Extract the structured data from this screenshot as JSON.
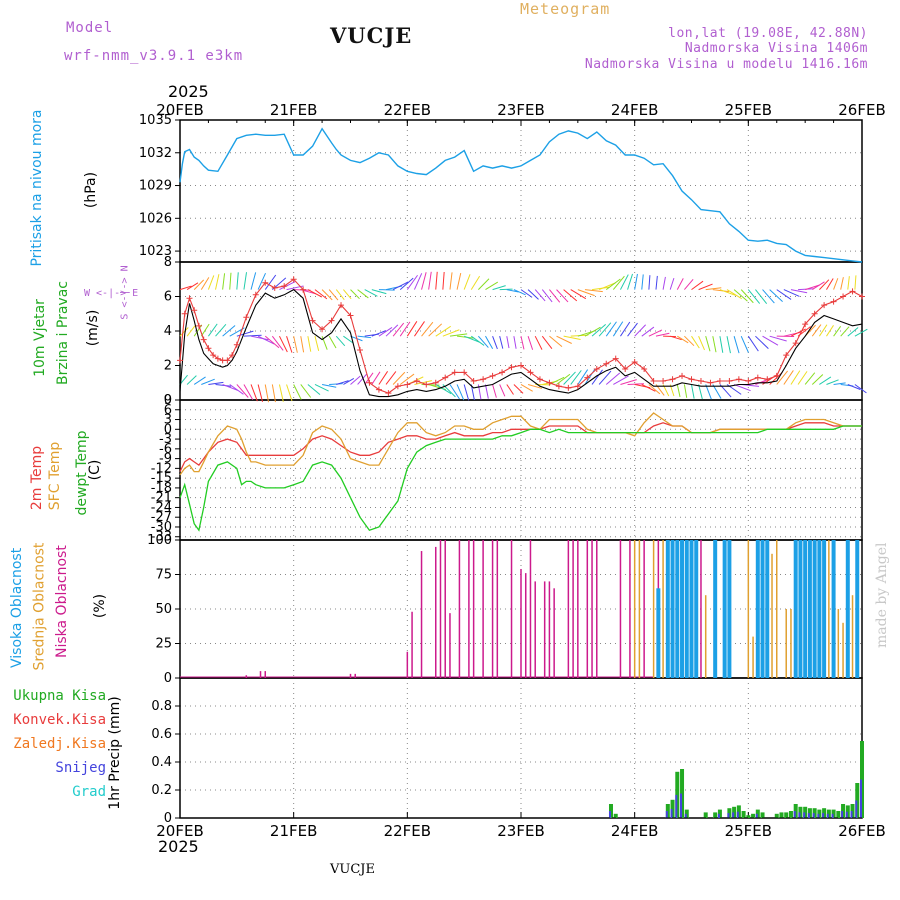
{
  "header": {
    "model_label": "Model",
    "model_name": "wrf-nmm_v3.9.1 e3km",
    "station": "VUCJE",
    "meteogram": "Meteogram",
    "lonlat": "lon,lat (19.08E, 42.88N)",
    "altitude": "Nadmorska Visina 1406m",
    "altitude_model": "Nadmorska Visina u modelu 1416.16m",
    "credit": "made by Angel",
    "footer_station": "VUCJE",
    "year": "2025"
  },
  "colors": {
    "pressure": "#1ca0e6",
    "t2m": "#e83c3c",
    "sfc": "#e0a030",
    "dew": "#22cc22",
    "high_cloud": "#1ca0e6",
    "mid_cloud": "#e0a030",
    "low_cloud": "#cc1a8c",
    "total_precip": "#22aa22",
    "conv_precip": "#e83c3c",
    "frz_precip": "#f07820",
    "snow": "#4444dd",
    "hail": "#22cccc"
  },
  "dates": [
    "20FEB",
    "21FEB",
    "22FEB",
    "23FEB",
    "24FEB",
    "25FEB",
    "26FEB"
  ],
  "panel_labels": {
    "pressure": [
      "Pritisak na nivou mora"
    ],
    "pressure_unit": "(hPa)",
    "wind": [
      "10m Vjetar",
      "Brzina i Pravac"
    ],
    "wind_unit": "(m/s)",
    "compass": "W <-|-> E",
    "compass_v": "S <-|-> N",
    "temp": [
      "2m Temp",
      "SFC Temp",
      "dewpt Temp"
    ],
    "temp_unit": "(C)",
    "cloud": [
      "Visoka Oblacnost",
      "Srednja Oblacnost",
      "Niska Oblacnost"
    ],
    "cloud_unit": "(%)",
    "precip_unit": "1hr Precip (mm)",
    "precip_legend": [
      "Ukupna Kisa",
      "Konvek.Kisa",
      "Zaledj.Kisa",
      "Snijeg",
      "Grad"
    ]
  },
  "chart_data": [
    {
      "type": "line",
      "name": "pressure",
      "ylim": [
        1022,
        1035
      ],
      "yticks": [
        1023,
        1026,
        1029,
        1032,
        1035
      ],
      "x": [
        0,
        0.5,
        1,
        2,
        3,
        4,
        5,
        6,
        8,
        10,
        12,
        14,
        16,
        18,
        20,
        22,
        24,
        26,
        28,
        30,
        32,
        33,
        34,
        36,
        38,
        40,
        42,
        44,
        46,
        48,
        50,
        52,
        54,
        56,
        58,
        60,
        62,
        64,
        66,
        68,
        70,
        72,
        74,
        76,
        78,
        80,
        82,
        84,
        86,
        88,
        90,
        92,
        94,
        96,
        98,
        100,
        102,
        104,
        106,
        108,
        110,
        112,
        114,
        116,
        118,
        120,
        122,
        124,
        126,
        128,
        130,
        132,
        134,
        136,
        138,
        140,
        142,
        144
      ],
      "values": [
        1029.3,
        1031.0,
        1032.1,
        1032.3,
        1031.6,
        1031.3,
        1030.8,
        1030.4,
        1030.3,
        1031.8,
        1033.3,
        1033.6,
        1033.7,
        1033.6,
        1033.6,
        1033.7,
        1031.8,
        1031.8,
        1032.6,
        1034.2,
        1032.9,
        1032.3,
        1031.8,
        1031.3,
        1031.1,
        1031.5,
        1032.0,
        1031.8,
        1030.8,
        1030.3,
        1030.1,
        1030.0,
        1030.6,
        1031.3,
        1031.6,
        1032.2,
        1030.3,
        1030.8,
        1030.6,
        1030.8,
        1030.6,
        1030.8,
        1031.3,
        1031.8,
        1033.0,
        1033.7,
        1034.0,
        1033.8,
        1033.3,
        1033.9,
        1033.1,
        1032.7,
        1031.8,
        1031.8,
        1031.5,
        1030.9,
        1031.0,
        1029.9,
        1028.5,
        1027.7,
        1026.8,
        1026.7,
        1026.6,
        1025.5,
        1024.8,
        1024.0,
        1023.9,
        1024.0,
        1023.7,
        1023.6,
        1023.0,
        1022.6,
        1022.5,
        1022.4,
        1022.3,
        1022.2,
        1022.1,
        1022.0
      ]
    },
    {
      "type": "line",
      "name": "wind",
      "ylim": [
        0,
        8
      ],
      "yticks": [
        0,
        2,
        4,
        6,
        8
      ],
      "x": [
        0,
        1,
        2,
        3,
        4,
        5,
        6,
        7,
        8,
        9,
        10,
        11,
        12,
        14,
        16,
        18,
        20,
        22,
        24,
        26,
        28,
        30,
        32,
        34,
        36,
        38,
        40,
        42,
        44,
        46,
        48,
        50,
        52,
        54,
        56,
        58,
        60,
        62,
        64,
        66,
        68,
        70,
        72,
        74,
        76,
        78,
        80,
        82,
        84,
        86,
        88,
        90,
        92,
        94,
        96,
        98,
        100,
        102,
        104,
        106,
        108,
        110,
        112,
        114,
        116,
        118,
        120,
        122,
        124,
        126,
        128,
        130,
        132,
        134,
        136,
        138,
        140,
        142,
        144
      ],
      "values": [
        2.3,
        5.0,
        5.9,
        5.2,
        4.3,
        3.5,
        3.0,
        2.6,
        2.4,
        2.3,
        2.3,
        2.6,
        3.2,
        4.8,
        6.1,
        6.8,
        6.5,
        6.6,
        7.0,
        6.4,
        4.6,
        4.1,
        4.6,
        5.5,
        4.9,
        2.9,
        1.0,
        0.6,
        0.4,
        0.8,
        0.9,
        1.1,
        0.9,
        1.0,
        1.3,
        1.6,
        1.6,
        1.1,
        1.2,
        1.4,
        1.6,
        1.9,
        2.0,
        1.6,
        1.2,
        1.0,
        0.8,
        0.7,
        0.8,
        1.3,
        1.8,
        2.1,
        2.4,
        1.8,
        2.2,
        1.8,
        1.1,
        1.1,
        1.2,
        1.4,
        1.2,
        1.1,
        1.0,
        1.1,
        1.1,
        1.2,
        1.1,
        1.3,
        1.2,
        1.4,
        2.6,
        3.3,
        4.4,
        5.0,
        5.5,
        5.7,
        6.0,
        6.3,
        6.0
      ],
      "gust": [
        0.5,
        3.8,
        5.6,
        4.6,
        3.5,
        2.7,
        2.4,
        2.1,
        2.0,
        1.9,
        2.0,
        2.3,
        2.8,
        4.2,
        5.5,
        6.2,
        5.9,
        6.1,
        6.4,
        5.9,
        3.9,
        3.5,
        3.9,
        4.7,
        3.9,
        1.7,
        0.3,
        0.2,
        0.2,
        0.3,
        0.5,
        0.6,
        0.5,
        0.6,
        0.8,
        1.1,
        1.2,
        0.7,
        0.8,
        0.9,
        1.2,
        1.5,
        1.6,
        1.2,
        0.8,
        0.6,
        0.5,
        0.4,
        0.6,
        1.0,
        1.4,
        1.7,
        1.9,
        1.4,
        1.6,
        1.2,
        0.8,
        0.8,
        0.8,
        1.0,
        0.9,
        0.8,
        0.8,
        0.8,
        0.8,
        0.9,
        0.9,
        1.0,
        1.0,
        1.1,
        2.0,
        3.0,
        3.7,
        4.5,
        4.9,
        4.7,
        4.5,
        4.3,
        4.4
      ]
    },
    {
      "type": "line",
      "name": "temperature",
      "ylim": [
        -34,
        9
      ],
      "yticks": [
        -33,
        -30,
        -27,
        -24,
        -21,
        -18,
        -15,
        -12,
        -9,
        -6,
        -3,
        0,
        3,
        6,
        9
      ],
      "x": [
        0,
        1,
        2,
        3,
        4,
        5,
        6,
        8,
        10,
        12,
        13,
        14,
        15,
        16,
        18,
        20,
        22,
        24,
        26,
        28,
        30,
        32,
        34,
        36,
        38,
        40,
        42,
        44,
        46,
        48,
        50,
        52,
        54,
        56,
        58,
        60,
        62,
        64,
        66,
        68,
        70,
        72,
        74,
        76,
        78,
        80,
        82,
        84,
        86,
        88,
        90,
        92,
        94,
        96,
        98,
        100,
        102,
        104,
        106,
        108,
        110,
        112,
        114,
        116,
        118,
        120,
        122,
        124,
        126,
        128,
        130,
        132,
        134,
        136,
        138,
        140,
        142,
        144
      ],
      "series": [
        {
          "name": "2m Temp",
          "values": [
            -13,
            -10,
            -9,
            -10,
            -11,
            -9,
            -7,
            -4,
            -3,
            -4,
            -6,
            -8,
            -8,
            -8,
            -8,
            -8,
            -8,
            -8,
            -6,
            -3,
            -2,
            -3,
            -5,
            -7,
            -8,
            -8,
            -7,
            -4,
            -3,
            -2,
            -2,
            -3,
            -3,
            -2,
            -1,
            -2,
            -2,
            -2,
            -1,
            -1,
            0,
            0,
            0,
            0,
            1,
            1,
            1,
            1,
            -1,
            -1,
            -1,
            -1,
            -1,
            -1,
            -1,
            1,
            2,
            1,
            1,
            -1,
            -1,
            -1,
            0,
            0,
            0,
            0,
            0,
            0,
            0,
            0,
            1,
            2,
            2,
            2,
            1,
            1,
            1,
            1
          ]
        },
        {
          "name": "SFC Temp",
          "values": [
            -14,
            -12,
            -11,
            -13,
            -13,
            -10,
            -7,
            -2,
            1,
            0,
            -3,
            -7,
            -10,
            -10,
            -11,
            -11,
            -11,
            -11,
            -8,
            -1,
            1,
            0,
            -3,
            -9,
            -10,
            -11,
            -11,
            -6,
            -1,
            2,
            2,
            -1,
            -2,
            -1,
            1,
            1,
            0,
            0,
            2,
            3,
            4,
            4,
            1,
            0,
            3,
            3,
            3,
            3,
            0,
            -1,
            -1,
            -1,
            -1,
            -2,
            2,
            5,
            3,
            1,
            1,
            -1,
            -1,
            -1,
            0,
            0,
            0,
            0,
            0,
            0,
            0,
            0,
            2,
            3,
            3,
            3,
            2,
            1,
            1,
            1
          ]
        },
        {
          "name": "dewpt Temp",
          "values": [
            -21,
            -17,
            -23,
            -29,
            -31,
            -24,
            -16,
            -11,
            -10,
            -12,
            -17,
            -16,
            -16,
            -17,
            -18,
            -18,
            -18,
            -17,
            -16,
            -11,
            -10,
            -11,
            -15,
            -21,
            -27,
            -31,
            -30,
            -26,
            -22,
            -12,
            -7,
            -5,
            -4,
            -3,
            -3,
            -3,
            -3,
            -3,
            -3,
            -2,
            -2,
            -1,
            0,
            0,
            -1,
            0,
            -1,
            -1,
            -1,
            -1,
            -1,
            -1,
            -1,
            -1,
            -1,
            -1,
            -1,
            -1,
            -1,
            -1,
            -1,
            -1,
            -1,
            -1,
            -1,
            -1,
            -1,
            0,
            0,
            0,
            0,
            0,
            0,
            0,
            0,
            1,
            1,
            1
          ]
        }
      ]
    },
    {
      "type": "bar",
      "name": "cloud_cover",
      "ylim": [
        0,
        100
      ],
      "yticks": [
        0,
        25,
        50,
        75,
        100
      ],
      "series": [
        {
          "name": "Niska Oblacnost",
          "x": [
            14,
            17,
            18,
            36,
            37,
            48,
            49,
            51,
            54,
            55,
            56,
            57,
            59,
            61,
            62,
            64,
            66,
            67,
            70,
            72,
            73,
            74,
            75,
            77,
            78,
            79,
            82,
            83,
            84,
            86,
            87,
            88,
            93,
            95,
            98,
            101,
            103,
            106,
            110
          ],
          "values": [
            2,
            5,
            5,
            3,
            3,
            19,
            48,
            92,
            95,
            100,
            100,
            47,
            100,
            100,
            100,
            100,
            100,
            100,
            100,
            79,
            76,
            100,
            70,
            70,
            70,
            65,
            100,
            100,
            100,
            100,
            100,
            100,
            100,
            100,
            100,
            100,
            100,
            100,
            100
          ]
        },
        {
          "name": "Srednja Oblacnost",
          "x": [
            96,
            97,
            100,
            102,
            104,
            106,
            111,
            113,
            115,
            120,
            121,
            125,
            126,
            128,
            129,
            137,
            139,
            140,
            142
          ],
          "values": [
            100,
            100,
            100,
            100,
            100,
            100,
            60,
            55,
            95,
            100,
            30,
            90,
            100,
            50,
            50,
            100,
            50,
            40,
            60
          ]
        },
        {
          "name": "Visoka Oblacnost",
          "x": [
            101,
            103,
            104,
            105,
            106,
            107,
            108,
            109,
            113,
            115,
            116,
            122,
            123,
            124,
            130,
            131,
            132,
            133,
            134,
            135,
            136,
            138,
            141,
            143
          ],
          "values": [
            65,
            100,
            100,
            100,
            100,
            100,
            100,
            100,
            100,
            100,
            100,
            100,
            100,
            100,
            100,
            100,
            100,
            100,
            100,
            100,
            100,
            100,
            100,
            100
          ]
        }
      ]
    },
    {
      "type": "bar",
      "name": "precipitation",
      "ylim": [
        0,
        1.0
      ],
      "yticks": [
        0,
        0.2,
        0.4,
        0.6,
        0.8
      ],
      "x": [
        91,
        92,
        103,
        104,
        105,
        106,
        107,
        111,
        113,
        114,
        116,
        117,
        118,
        119,
        120,
        121,
        122,
        123,
        126,
        127,
        128,
        129,
        130,
        131,
        132,
        133,
        134,
        135,
        136,
        137,
        138,
        139,
        140,
        141,
        142,
        143,
        144
      ],
      "values": [
        0.1,
        0.03,
        0.1,
        0.13,
        0.33,
        0.35,
        0.06,
        0.04,
        0.04,
        0.06,
        0.07,
        0.08,
        0.09,
        0.05,
        0.02,
        0.03,
        0.06,
        0.04,
        0.03,
        0.04,
        0.04,
        0.05,
        0.1,
        0.08,
        0.08,
        0.07,
        0.07,
        0.06,
        0.07,
        0.06,
        0.06,
        0.05,
        0.1,
        0.09,
        0.1,
        0.25,
        0.55
      ]
    }
  ]
}
